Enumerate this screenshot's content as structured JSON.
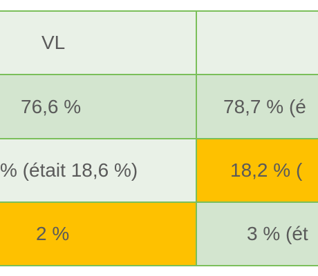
{
  "table": {
    "rows": [
      [
        "VL"
      ],
      [
        "76,6 %",
        "78,7 % (é"
      ],
      [
        "% (était 18,6 %)",
        "18,2 % ("
      ],
      [
        "2 %",
        "3 % (ét"
      ]
    ]
  }
}
